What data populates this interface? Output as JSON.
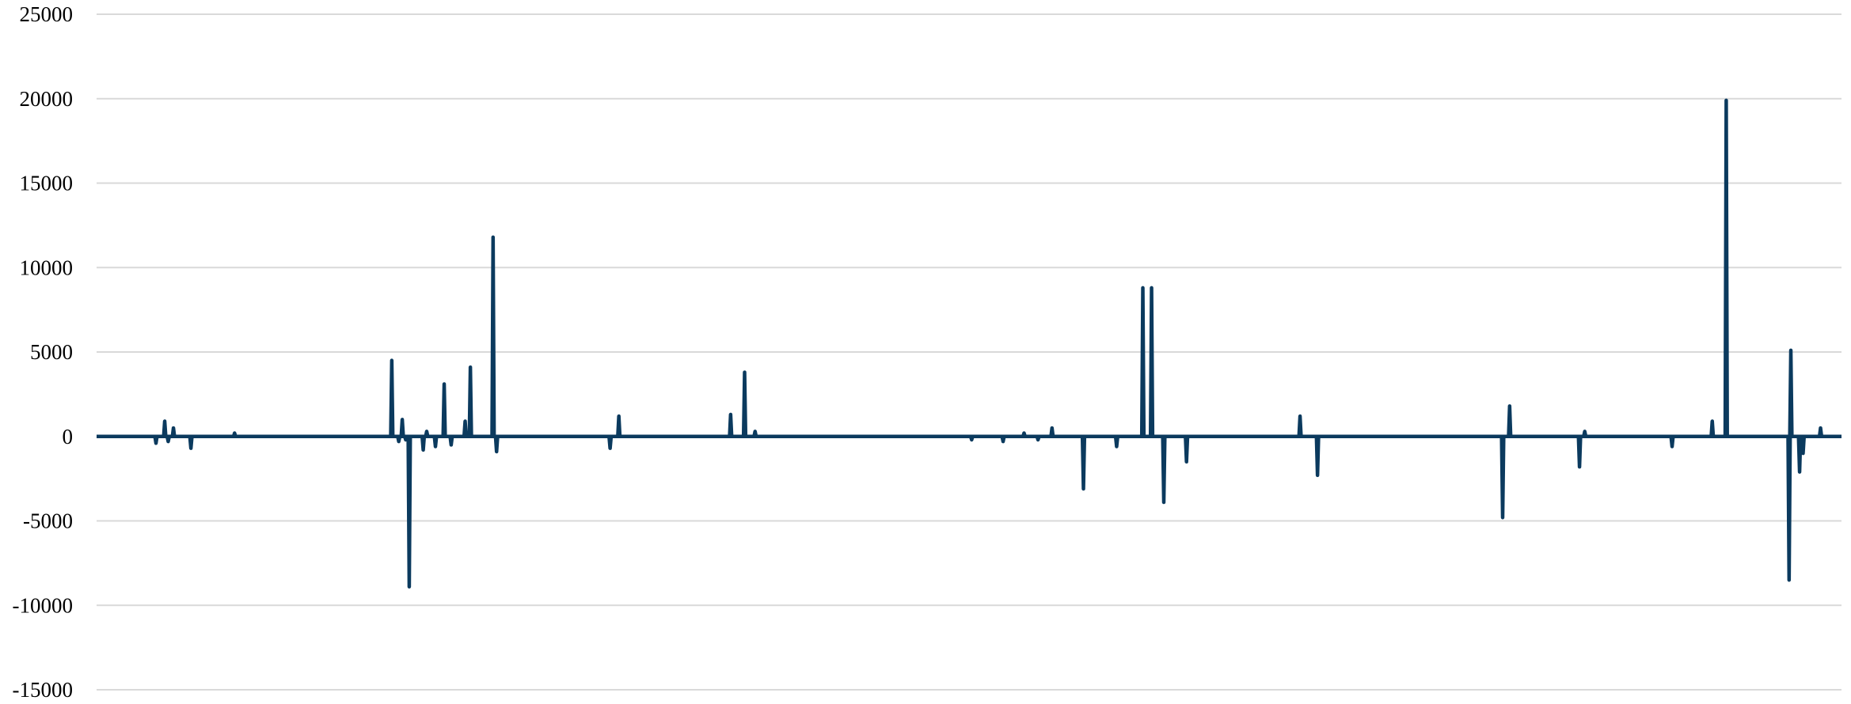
{
  "chart_data": {
    "type": "line",
    "title": "",
    "xlabel": "",
    "ylabel": "",
    "ylim": [
      -15000,
      25000
    ],
    "yticks": [
      25000,
      20000,
      15000,
      10000,
      5000,
      0,
      -5000,
      -10000,
      -15000
    ],
    "ytick_labels": [
      "25000",
      "20000",
      "15000",
      "10000",
      "5000",
      "0",
      "-5000",
      "-10000",
      "-15000"
    ],
    "grid": true,
    "legend": "none",
    "x": [
      1,
      10,
      18,
      28,
      35,
      40,
      42,
      45,
      48,
      50,
      55,
      62,
      66,
      70,
      80,
      86,
      93,
      100,
      109,
      122,
      132,
      138,
      170,
      174,
      176,
      178,
      182,
      188,
      190,
      195,
      200,
      204,
      208,
      212,
      215,
      260,
      270,
      280,
      295,
      300,
      315,
      335,
      350,
      364,
      366,
      372,
      378,
      480,
      495,
      502,
      505,
      515,
      520,
      532,
      540,
      548,
      566,
      575,
      585,
      600,
      605,
      612,
      615,
      625,
      628,
      642,
      662,
      665,
      680,
      690,
      700,
      705,
      710,
      722,
      730,
      790,
      800,
      806,
      810,
      815,
      823,
      828,
      835,
      850,
      853,
      856,
      861,
      865,
      870,
      880,
      890,
      903,
      908,
      926,
      928,
      930,
      935,
      950,
      965,
      970,
      980,
      988,
      1000
    ],
    "series": [
      {
        "values": [
          0,
          0,
          0,
          0,
          -400,
          900,
          -300,
          500,
          0,
          0,
          -700,
          0,
          0,
          0,
          200,
          0,
          0,
          0,
          0,
          0,
          0,
          0,
          4500,
          -300,
          1000,
          -200,
          0,
          -800,
          300,
          -600,
          3100,
          -500,
          0,
          900,
          4100,
          0,
          0,
          0,
          -700,
          1200,
          0,
          0,
          0,
          1300,
          0,
          3800,
          300,
          0,
          0,
          -200,
          0,
          0,
          -300,
          200,
          -200,
          500,
          -3100,
          0,
          -600,
          8800,
          0,
          -3900,
          0,
          -1500,
          0,
          0,
          0,
          0,
          0,
          1200,
          -2300,
          0,
          0,
          0,
          0,
          0,
          0,
          -4800,
          1800,
          0,
          0,
          0,
          0,
          -1800,
          300,
          0,
          0,
          0,
          0,
          0,
          0,
          -600,
          0,
          900,
          0,
          0,
          0,
          0,
          0,
          -8500,
          0,
          500,
          0
        ]
      },
      {
        "values": [
          0,
          0,
          0,
          0,
          0,
          0,
          0,
          0,
          0,
          0,
          0,
          0,
          0,
          0,
          0,
          0,
          0,
          0,
          0,
          0,
          0,
          0,
          0,
          0,
          0,
          0,
          0,
          0,
          0,
          0,
          0,
          0,
          0,
          0,
          0,
          0,
          0,
          0,
          0,
          0,
          0,
          0,
          0,
          0,
          0,
          0,
          0,
          0,
          0,
          0,
          0,
          0,
          0,
          0,
          0,
          0,
          0,
          0,
          0,
          0,
          0,
          0,
          0,
          0,
          0,
          0,
          0,
          0,
          0,
          0,
          0,
          0,
          0,
          0,
          0,
          0,
          0,
          0,
          0,
          0,
          0,
          0,
          0,
          0,
          0,
          0,
          0,
          0,
          0,
          0,
          0,
          0,
          0,
          0,
          0,
          0,
          0,
          0,
          0,
          0,
          0,
          0,
          0
        ]
      }
    ],
    "spikes": [
      {
        "x": 180,
        "value": -8900
      },
      {
        "x": 228,
        "value": 11800
      },
      {
        "x": 230,
        "value": -900
      },
      {
        "x": 605,
        "value": 8800
      },
      {
        "x": 828,
        "value": 0
      },
      {
        "x": 874,
        "value": 0
      },
      {
        "x": 880,
        "value": 0
      },
      {
        "x": 934,
        "value": 19900
      },
      {
        "x": 971,
        "value": 5100
      },
      {
        "x": 976,
        "value": -2100
      },
      {
        "x": 978,
        "value": -1000
      }
    ],
    "colors": {
      "line": "#0b3a5e",
      "grid": "#d9d9d9",
      "text": "#000000",
      "background": "#ffffff"
    }
  }
}
